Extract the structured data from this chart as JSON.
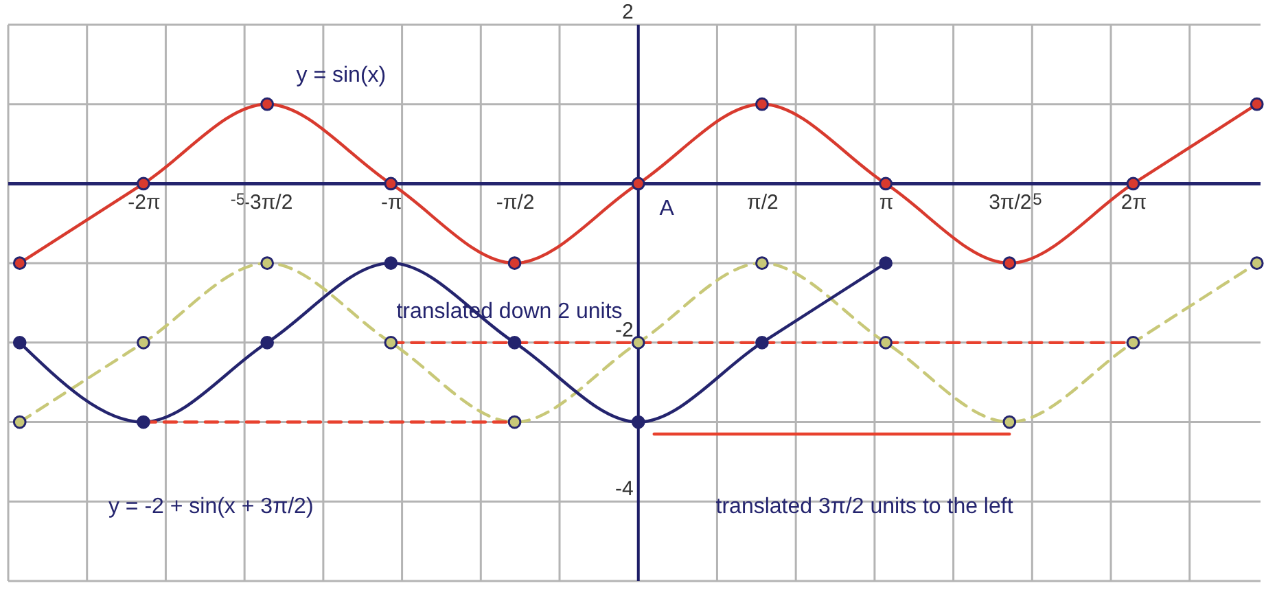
{
  "chart_data": {
    "type": "line",
    "xlim": [
      -8,
      7.9
    ],
    "ylim": [
      -5,
      2
    ],
    "xticks": [
      {
        "value": -8,
        "label": null
      },
      {
        "value": -7,
        "label": null
      },
      {
        "value": -6,
        "label": null
      },
      -5,
      {
        "value": -4,
        "label": null
      },
      {
        "value": -3,
        "label": null
      },
      {
        "value": -2,
        "label": null
      },
      {
        "value": -1,
        "label": null
      },
      {
        "value": 0,
        "label": null
      },
      {
        "value": 1,
        "label": null
      },
      {
        "value": 2,
        "label": null
      },
      {
        "value": 3,
        "label": null
      },
      {
        "value": 4,
        "label": null
      },
      5,
      {
        "value": 6,
        "label": null
      },
      {
        "value": 7,
        "label": null
      },
      {
        "value": -6.2832,
        "label": "-2π"
      },
      {
        "value": -4.7124,
        "label": "-3π/2"
      },
      {
        "value": -3.1416,
        "label": "-π"
      },
      {
        "value": -1.5708,
        "label": "-π/2"
      },
      {
        "value": 1.5708,
        "label": "π/2"
      },
      {
        "value": 3.1416,
        "label": "π"
      },
      {
        "value": 4.7124,
        "label": "3π/2"
      },
      {
        "value": 6.2832,
        "label": "2π"
      }
    ],
    "yticks": [
      2,
      {
        "value": 1,
        "label": null
      },
      {
        "value": 0,
        "label": null
      },
      {
        "value": -1,
        "label": null
      },
      -2,
      {
        "value": -3,
        "label": null
      },
      -4,
      {
        "value": -5,
        "label": null
      }
    ],
    "grid": true,
    "marker": "circle",
    "line_style": "solid",
    "ref_lines": [
      {
        "axis": "y",
        "value": 0,
        "color": "#24246e"
      },
      {
        "axis": "x",
        "value": 0,
        "color": "#1c1c66"
      }
    ],
    "series": [
      {
        "color": "#d83a2e",
        "x": [
          -7.854,
          -6.2832,
          -4.7124,
          -3.1416,
          -1.5708,
          0,
          1.5708,
          3.1416,
          4.7124,
          6.2832,
          7.854
        ],
        "values": [
          -1,
          0,
          1,
          0,
          -1,
          0,
          1,
          0,
          -1,
          0,
          1
        ]
      },
      {
        "color": "#c8c878",
        "line_style": "dashed",
        "x": [
          -7.854,
          -6.2832,
          -4.7124,
          -3.1416,
          -1.5708,
          0,
          1.5708,
          3.1416,
          4.7124,
          6.2832,
          7.854
        ],
        "values": [
          -3,
          -2,
          -1,
          -2,
          -3,
          -2,
          -1,
          -2,
          -3,
          -2,
          -1
        ]
      },
      {
        "color": "#24246e",
        "x": [
          -7.854,
          -6.2832,
          -4.7124,
          -3.1416,
          -1.5708,
          0,
          1.5708,
          3.1416
        ],
        "values": [
          -2,
          -3,
          -2,
          -1,
          -2,
          -3,
          -2,
          -1
        ]
      },
      {
        "color": "#e8412e",
        "line_style": "dashed",
        "marker": "none",
        "x": [
          -6.2832,
          -1.5708
        ],
        "values": [
          -3,
          -3
        ]
      },
      {
        "color": "#e8412e",
        "line_style": "dashed",
        "marker": "none",
        "x": [
          -3.1416,
          6.2832
        ],
        "values": [
          -2,
          -2
        ]
      },
      {
        "color": "#e8412e",
        "marker": "none",
        "x": [
          4.7124,
          0.2
        ],
        "values": [
          -3.15,
          -3.15
        ]
      }
    ],
    "annotations": [
      "y = sin(x)",
      "A",
      "translated down 2 units",
      "y = -2 + sin(x + 3π/2)",
      "translated 3π/2 units to the left"
    ]
  }
}
